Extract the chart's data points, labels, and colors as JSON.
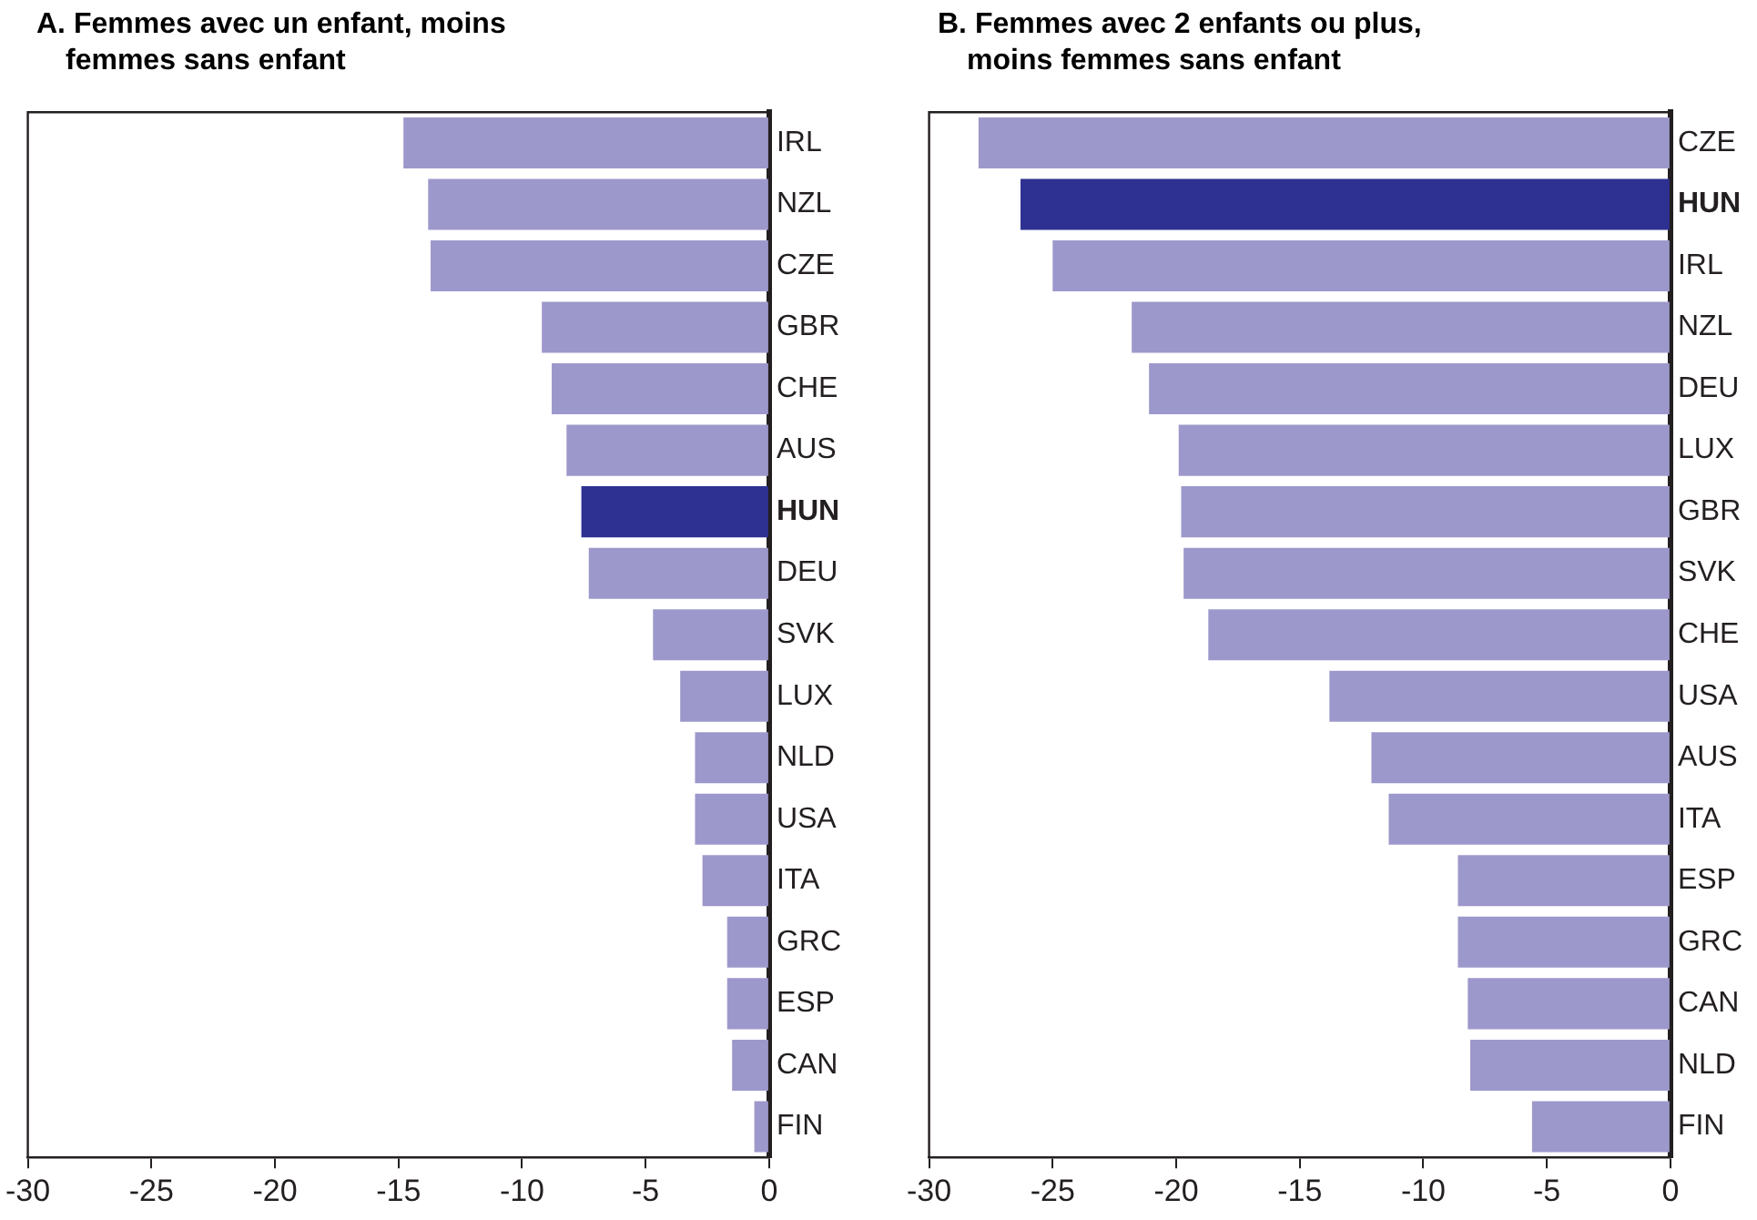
{
  "chart_data": [
    {
      "type": "bar",
      "orientation": "horizontal",
      "title": "A. Femmes avec un enfant, moins femmes sans enfant",
      "categories": [
        "IRL",
        "NZL",
        "CZE",
        "GBR",
        "CHE",
        "AUS",
        "HUN",
        "DEU",
        "SVK",
        "LUX",
        "NLD",
        "USA",
        "ITA",
        "GRC",
        "ESP",
        "CAN",
        "FIN"
      ],
      "values": [
        -14.8,
        -13.8,
        -13.7,
        -9.2,
        -8.8,
        -8.2,
        -7.6,
        -7.3,
        -4.7,
        -3.6,
        -3.0,
        -3.0,
        -2.7,
        -1.7,
        -1.7,
        -1.5,
        -0.6
      ],
      "colors": [
        "#9d98cb",
        "#9d98cb",
        "#9d98cb",
        "#9d98cb",
        "#9d98cb",
        "#9d98cb",
        "#2e3192",
        "#9d98cb",
        "#9d98cb",
        "#9d98cb",
        "#9d98cb",
        "#9d98cb",
        "#9d98cb",
        "#9d98cb",
        "#9d98cb",
        "#9d98cb",
        "#9d98cb"
      ],
      "xlim": [
        -30,
        0
      ],
      "xticks": [
        -30,
        -25,
        -20,
        -15,
        -10,
        -5,
        0
      ],
      "legend": false
    },
    {
      "type": "bar",
      "orientation": "horizontal",
      "title": "B. Femmes avec 2 enfants ou plus, moins femmes sans enfant",
      "categories": [
        "CZE",
        "HUN",
        "IRL",
        "NZL",
        "DEU",
        "LUX",
        "GBR",
        "SVK",
        "CHE",
        "USA",
        "AUS",
        "ITA",
        "ESP",
        "GRC",
        "CAN",
        "NLD",
        "FIN"
      ],
      "values": [
        -28.0,
        -26.3,
        -25.0,
        -21.8,
        -21.1,
        -19.9,
        -19.8,
        -19.7,
        -18.7,
        -13.8,
        -12.1,
        -11.4,
        -8.6,
        -8.6,
        -8.2,
        -8.1,
        -5.6
      ],
      "colors": [
        "#9d98cb",
        "#2e3192",
        "#9d98cb",
        "#9d98cb",
        "#9d98cb",
        "#9d98cb",
        "#9d98cb",
        "#9d98cb",
        "#9d98cb",
        "#9d98cb",
        "#9d98cb",
        "#9d98cb",
        "#9d98cb",
        "#9d98cb",
        "#9d98cb",
        "#9d98cb",
        "#9d98cb"
      ],
      "xlim": [
        -30,
        0
      ],
      "xticks": [
        -30,
        -25,
        -20,
        -15,
        -10,
        -5,
        0
      ],
      "legend": false
    }
  ]
}
